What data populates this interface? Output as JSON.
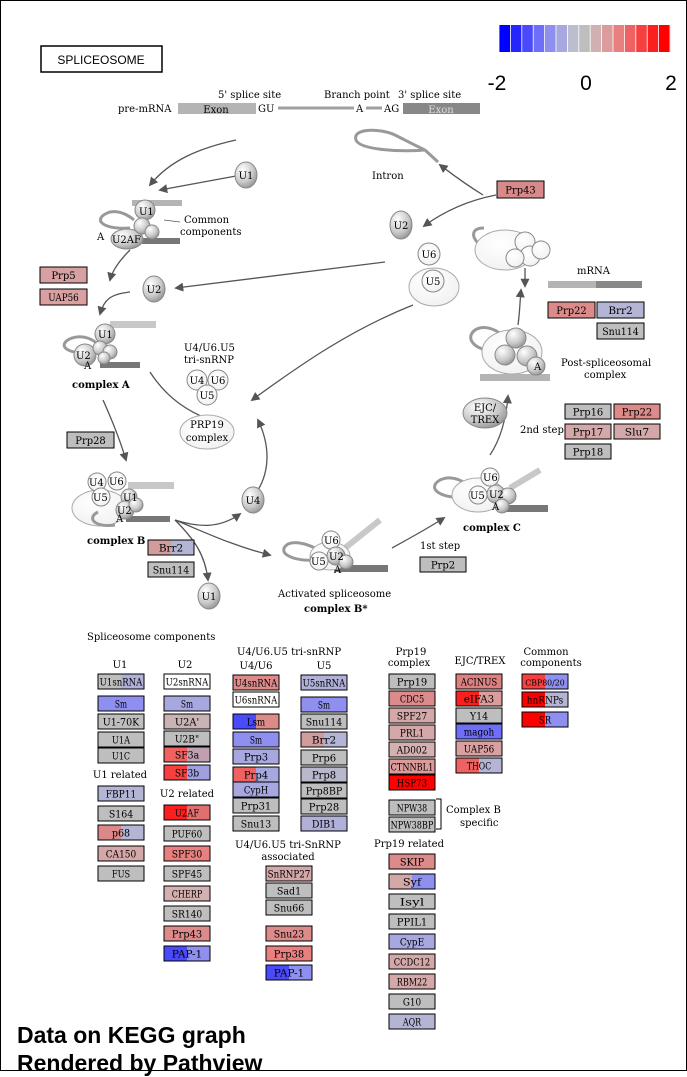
{
  "title": "SPLICEOSOME",
  "legend": {
    "min_label": "-2",
    "mid_label": "0",
    "max_label": "2",
    "colors": [
      "#0000ff",
      "#2525fd",
      "#4a4afb",
      "#6e6ef8",
      "#8f8fef",
      "#a8a8e0",
      "#bdbdd0",
      "#bebebe",
      "#d0b0b0",
      "#dc9c9c",
      "#e88080",
      "#ef6262",
      "#f64040",
      "#fb2020",
      "#ff0000"
    ]
  },
  "pre_mrna": {
    "label": "pre-mRNA",
    "five_splice": "5' splice site",
    "branch_point": "Branch point",
    "three_splice": "3' splice site",
    "exon1": "Exon",
    "exon2": "Exon",
    "gu": "GU",
    "a": "A",
    "ag": "AG"
  },
  "cycle_labels": {
    "intron": "Intron",
    "common_components": [
      "Common",
      "components"
    ],
    "mrna": "mRNA",
    "post_spliceosomal": [
      "Post-spliceosomal",
      "complex"
    ],
    "tri_snrnp": [
      "U4/U6.U5",
      "tri-snRNP"
    ],
    "prp19": [
      "PRP19",
      "complex"
    ],
    "ejc_trex": [
      "EJC/",
      "TREX"
    ],
    "second_step": "2nd step",
    "first_step": "1st step",
    "activated": "Activated spliceosome",
    "complex_a": "complex A",
    "complex_b": "complex B",
    "complex_b_star": "complex B*",
    "complex_c": "complex C"
  },
  "particles": {
    "u1": "U1",
    "u2": "U2",
    "u4": "U4",
    "u5": "U5",
    "u6": "U6",
    "u2af": "U2AF",
    "a": "A"
  },
  "sections": {
    "components_title": "Spliceosome components",
    "u1": "U1",
    "u2": "U2",
    "tri_title": "U4/U6.U5 tri-snRNP",
    "u4u6": "U4/U6",
    "u5": "U5",
    "prp19_title": [
      "Prp19",
      "complex"
    ],
    "ejc": "EJC/TREX",
    "common": [
      "Common",
      "components"
    ],
    "u1_related": "U1 related",
    "u2_related": "U2 related",
    "tri_assoc": [
      "U4/U6.U5 tri-SnRNP",
      "associated"
    ],
    "complex_b_specific": [
      "Complex B",
      "specific"
    ],
    "prp19_related": "Prp19 related"
  },
  "genes": [
    {
      "label": "Prp43",
      "colors": [
        "#d88a8a"
      ]
    },
    {
      "label": "Prp5",
      "colors": [
        "#d8a0a0"
      ]
    },
    {
      "label": "UAP56",
      "colors": [
        "#d8a0a0"
      ]
    },
    {
      "label": "Prp28",
      "colors": [
        "#bebebe"
      ]
    },
    {
      "label": "Prp22",
      "colors": [
        "#dc8a8a"
      ]
    },
    {
      "label": "Brr2",
      "colors": [
        "#b4b4d4"
      ]
    },
    {
      "label": "Snu114",
      "colors": [
        "#bebebe"
      ]
    },
    {
      "label": "Prp16",
      "colors": [
        "#bebebe"
      ]
    },
    {
      "label": "Prp22",
      "colors": [
        "#dc8a8a"
      ]
    },
    {
      "label": "Prp17",
      "colors": [
        "#d4a8a8"
      ]
    },
    {
      "label": "Slu7",
      "colors": [
        "#d4a8a8"
      ]
    },
    {
      "label": "Prp18",
      "colors": [
        "#bebebe"
      ]
    },
    {
      "label": "Brr2",
      "colors": [
        "#d09c9c",
        "#b4b4d4"
      ]
    },
    {
      "label": "Snu114",
      "colors": [
        "#bebebe"
      ]
    },
    {
      "label": "Prp2",
      "colors": [
        "#bebebe"
      ]
    },
    {
      "label": "U1snRNA",
      "colors": [
        "#bebebe",
        "#b0b0d8"
      ]
    },
    {
      "label": "Sm",
      "colors": [
        "#8f8fef"
      ]
    },
    {
      "label": "U1-70K",
      "colors": [
        "#bebebe"
      ]
    },
    {
      "label": "U1A",
      "colors": [
        "#bebebe"
      ]
    },
    {
      "label": "U1C",
      "colors": [
        "#bebebe"
      ]
    },
    {
      "label": "FBP11",
      "colors": [
        "#b4b4d4"
      ]
    },
    {
      "label": "S164",
      "colors": [
        "#bebebe"
      ]
    },
    {
      "label": "p68",
      "colors": [
        "#dc8888",
        "#b4b4d4"
      ]
    },
    {
      "label": "CA150",
      "colors": [
        "#d4a8a8"
      ]
    },
    {
      "label": "FUS",
      "colors": [
        "#bebebe"
      ]
    },
    {
      "label": "U2snRNA",
      "colors": [
        "#ffffff"
      ]
    },
    {
      "label": "Sm",
      "colors": [
        "#a8a8e0"
      ]
    },
    {
      "label": "U2A'",
      "colors": [
        "#c8b4b4"
      ]
    },
    {
      "label": "U2B\"",
      "colors": [
        "#bebebe"
      ]
    },
    {
      "label": "SF3a",
      "colors": [
        "#ef6262",
        "#c0a0b0"
      ]
    },
    {
      "label": "SF3b",
      "colors": [
        "#f64040",
        "#a0a0e0"
      ]
    },
    {
      "label": "U2AF",
      "colors": [
        "#fb2020",
        "#e07070"
      ]
    },
    {
      "label": "PUF60",
      "colors": [
        "#bebebe"
      ]
    },
    {
      "label": "SPF30",
      "colors": [
        "#e88080"
      ]
    },
    {
      "label": "SPF45",
      "colors": [
        "#bebebe"
      ]
    },
    {
      "label": "CHERP",
      "colors": [
        "#d4b0b0"
      ]
    },
    {
      "label": "SR140",
      "colors": [
        "#bebebe"
      ]
    },
    {
      "label": "Prp43",
      "colors": [
        "#dc8a8a"
      ]
    },
    {
      "label": "PAP-1",
      "colors": [
        "#4a4afb",
        "#8f8fef"
      ]
    },
    {
      "label": "U4snRNA",
      "colors": [
        "#dc8a8a"
      ]
    },
    {
      "label": "U6snRNA",
      "colors": [
        "#ffffff"
      ]
    },
    {
      "label": "Lsm",
      "colors": [
        "#4a4afb",
        "#dc8a8a"
      ]
    },
    {
      "label": "Sm",
      "colors": [
        "#8f8fef"
      ]
    },
    {
      "label": "Prp3",
      "colors": [
        "#a8a8e0"
      ]
    },
    {
      "label": "Prp4",
      "colors": [
        "#ef6262",
        "#a8a8e0"
      ]
    },
    {
      "label": "CypH",
      "colors": [
        "#a8a8e0"
      ]
    },
    {
      "label": "Prp31",
      "colors": [
        "#bebebe"
      ]
    },
    {
      "label": "Snu13",
      "colors": [
        "#bebebe"
      ]
    },
    {
      "label": "U5snRNA",
      "colors": [
        "#b0b0d8"
      ]
    },
    {
      "label": "Sm",
      "colors": [
        "#8f8fef"
      ]
    },
    {
      "label": "Snu114",
      "colors": [
        "#bebebe"
      ]
    },
    {
      "label": "Brr2",
      "colors": [
        "#d09c9c",
        "#b4b4d4"
      ]
    },
    {
      "label": "Prp6",
      "colors": [
        "#bebebe"
      ]
    },
    {
      "label": "Prp8",
      "colors": [
        "#b8b8cc"
      ]
    },
    {
      "label": "Prp8BP",
      "colors": [
        "#bebebe"
      ]
    },
    {
      "label": "Prp28",
      "colors": [
        "#bebebe"
      ]
    },
    {
      "label": "DIB1",
      "colors": [
        "#b0b0d8"
      ]
    },
    {
      "label": "SnRNP27",
      "colors": [
        "#d4a8a8"
      ]
    },
    {
      "label": "Sad1",
      "colors": [
        "#bebebe"
      ]
    },
    {
      "label": "Snu66",
      "colors": [
        "#bebebe"
      ]
    },
    {
      "label": "Snu23",
      "colors": [
        "#dc8a8a"
      ]
    },
    {
      "label": "Prp38",
      "colors": [
        "#e88080"
      ]
    },
    {
      "label": "PAP-1",
      "colors": [
        "#4a4afb",
        "#8f8fef"
      ]
    },
    {
      "label": "Prp19",
      "colors": [
        "#bebebe"
      ]
    },
    {
      "label": "CDC5",
      "colors": [
        "#dc8a8a"
      ]
    },
    {
      "label": "SPF27",
      "colors": [
        "#d4a8a8"
      ]
    },
    {
      "label": "PRL1",
      "colors": [
        "#d4a8a8"
      ]
    },
    {
      "label": "AD002",
      "colors": [
        "#d4b0b0"
      ]
    },
    {
      "label": "CTNNBL1",
      "colors": [
        "#dc9a9a"
      ]
    },
    {
      "label": "HSP73",
      "colors": [
        "#ff0000"
      ]
    },
    {
      "label": "ACINUS",
      "colors": [
        "#dc8080"
      ]
    },
    {
      "label": "eIFA3",
      "colors": [
        "#fb2020",
        "#dc9c9c"
      ]
    },
    {
      "label": "Y14",
      "colors": [
        "#bebebe"
      ]
    },
    {
      "label": "magoh",
      "colors": [
        "#6e6ef8"
      ]
    },
    {
      "label": "UAP56",
      "colors": [
        "#d8a0a0"
      ]
    },
    {
      "label": "THOC",
      "colors": [
        "#ef6262",
        "#b4b4d4"
      ]
    },
    {
      "label": "CBP80/20",
      "colors": [
        "#f64040",
        "#8f8fef"
      ]
    },
    {
      "label": "hnRNPs",
      "colors": [
        "#ff0000",
        "#b4b4d4"
      ]
    },
    {
      "label": "SR",
      "colors": [
        "#ff0000",
        "#8f8fef"
      ]
    },
    {
      "label": "NPW38",
      "colors": [
        "#bebebe"
      ]
    },
    {
      "label": "NPW38BP",
      "colors": [
        "#bebebe"
      ]
    },
    {
      "label": "SKIP",
      "colors": [
        "#dc8a8a"
      ]
    },
    {
      "label": "Syf",
      "colors": [
        "#d4a8a8",
        "#8f8fef"
      ]
    },
    {
      "label": "Isyl",
      "colors": [
        "#bebebe"
      ]
    },
    {
      "label": "PPIL1",
      "colors": [
        "#bebebe"
      ]
    },
    {
      "label": "CypE",
      "colors": [
        "#a8a8e0"
      ]
    },
    {
      "label": "CCDC12",
      "colors": [
        "#d4a8a8"
      ]
    },
    {
      "label": "RBM22",
      "colors": [
        "#d4a8a8"
      ]
    },
    {
      "label": "G10",
      "colors": [
        "#bebebe"
      ]
    },
    {
      "label": "AQR",
      "colors": [
        "#b4b4d4"
      ]
    }
  ],
  "footer": {
    "line1": "Data on KEGG graph",
    "line2": "Rendered by Pathview"
  }
}
